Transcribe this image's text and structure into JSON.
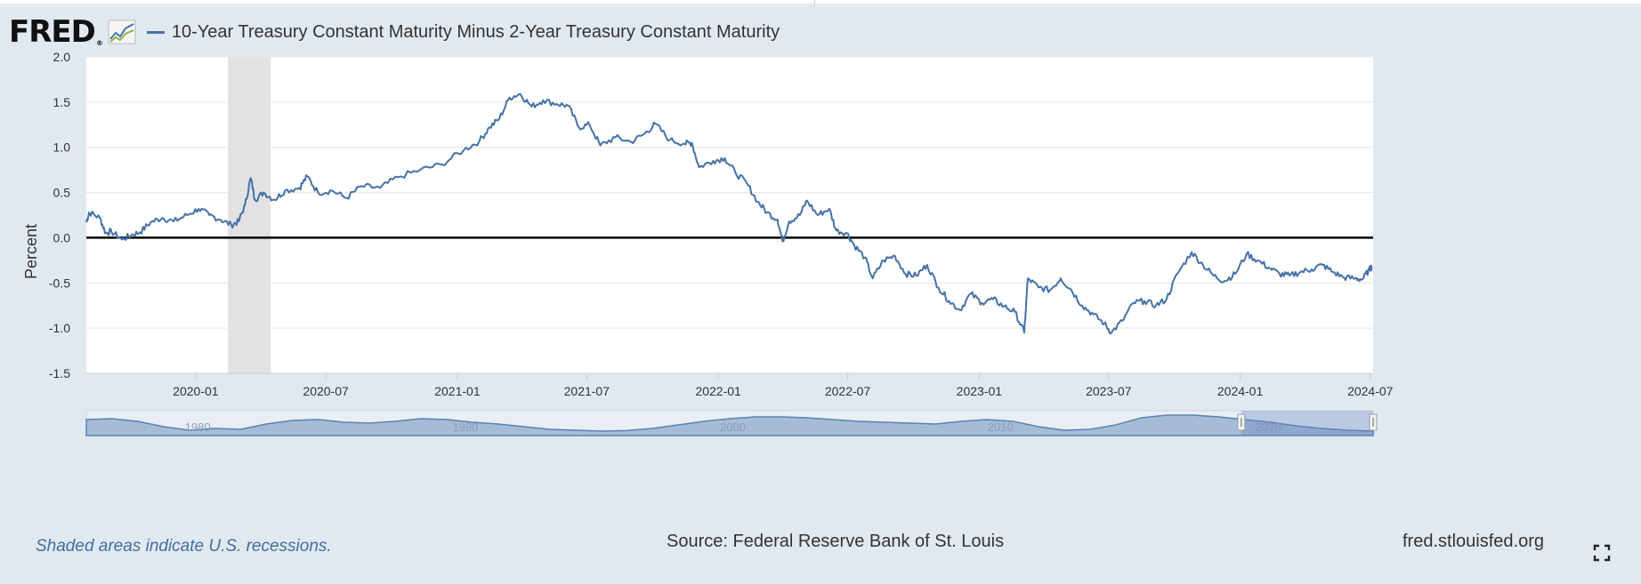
{
  "header": {
    "logo_text": "FRED",
    "logo_reg": "®",
    "logo_icon": "fred-trend-icon",
    "title": "10-Year Treasury Constant Maturity Minus 2-Year Treasury Constant Maturity"
  },
  "footer": {
    "recession_note": "Shaded areas indicate U.S. recessions.",
    "source": "Source: Federal Reserve Bank of St. Louis",
    "site": "fred.stlouisfed.org",
    "expand_icon": "fullscreen-icon"
  },
  "colors": {
    "series": "#4572a7",
    "recession": "#e2e2e2",
    "background": "#e1e9f0",
    "plot_bg": "#ffffff",
    "zero_line": "#000000"
  },
  "chart_data": {
    "type": "line",
    "title": "10-Year Treasury Constant Maturity Minus 2-Year Treasury Constant Maturity",
    "xlabel": "",
    "ylabel": "Percent",
    "ylim": [
      -1.5,
      2.0
    ],
    "xlim": [
      "2019-08-01",
      "2024-07-05"
    ],
    "yticks": [
      "2.0",
      "1.5",
      "1.0",
      "0.5",
      "0.0",
      "-0.5",
      "-1.0",
      "-1.5"
    ],
    "xticks": [
      "2020-01",
      "2020-07",
      "2021-01",
      "2021-07",
      "2022-01",
      "2022-07",
      "2023-01",
      "2023-07",
      "2024-01",
      "2024-07"
    ],
    "grid": "horizontal",
    "zero_line": true,
    "recession_shading": [
      [
        "2020-02-15",
        "2020-04-15"
      ]
    ],
    "series": [
      {
        "values": [
          [
            "2019-08-01",
            0.17
          ],
          [
            "2019-08-05",
            0.28
          ],
          [
            "2019-08-20",
            0.22
          ],
          [
            "2019-08-28",
            0.05
          ],
          [
            "2019-09-05",
            0.07
          ],
          [
            "2019-09-20",
            -0.02
          ],
          [
            "2019-10-03",
            0.03
          ],
          [
            "2019-10-15",
            0.06
          ],
          [
            "2019-10-30",
            0.17
          ],
          [
            "2019-11-15",
            0.22
          ],
          [
            "2019-12-01",
            0.18
          ],
          [
            "2019-12-20",
            0.25
          ],
          [
            "2020-01-05",
            0.32
          ],
          [
            "2020-01-20",
            0.25
          ],
          [
            "2020-02-05",
            0.2
          ],
          [
            "2020-02-20",
            0.14
          ],
          [
            "2020-03-01",
            0.18
          ],
          [
            "2020-03-10",
            0.36
          ],
          [
            "2020-03-18",
            0.66
          ],
          [
            "2020-03-24",
            0.42
          ],
          [
            "2020-04-05",
            0.5
          ],
          [
            "2020-04-20",
            0.42
          ],
          [
            "2020-05-05",
            0.52
          ],
          [
            "2020-05-25",
            0.55
          ],
          [
            "2020-06-05",
            0.68
          ],
          [
            "2020-06-20",
            0.5
          ],
          [
            "2020-07-10",
            0.52
          ],
          [
            "2020-07-30",
            0.44
          ],
          [
            "2020-08-20",
            0.57
          ],
          [
            "2020-09-15",
            0.55
          ],
          [
            "2020-10-10",
            0.67
          ],
          [
            "2020-11-10",
            0.75
          ],
          [
            "2020-12-10",
            0.81
          ],
          [
            "2021-01-10",
            0.97
          ],
          [
            "2021-02-01",
            1.07
          ],
          [
            "2021-02-15",
            1.22
          ],
          [
            "2021-03-01",
            1.32
          ],
          [
            "2021-03-15",
            1.55
          ],
          [
            "2021-03-30",
            1.59
          ],
          [
            "2021-04-15",
            1.45
          ],
          [
            "2021-05-01",
            1.52
          ],
          [
            "2021-05-20",
            1.48
          ],
          [
            "2021-06-05",
            1.46
          ],
          [
            "2021-06-20",
            1.22
          ],
          [
            "2021-07-05",
            1.25
          ],
          [
            "2021-07-20",
            1.02
          ],
          [
            "2021-08-10",
            1.11
          ],
          [
            "2021-09-01",
            1.06
          ],
          [
            "2021-09-20",
            1.15
          ],
          [
            "2021-10-05",
            1.26
          ],
          [
            "2021-10-25",
            1.08
          ],
          [
            "2021-11-15",
            1.04
          ],
          [
            "2021-11-25",
            1.05
          ],
          [
            "2021-12-05",
            0.78
          ],
          [
            "2021-12-25",
            0.85
          ],
          [
            "2022-01-10",
            0.88
          ],
          [
            "2022-01-25",
            0.72
          ],
          [
            "2022-02-10",
            0.6
          ],
          [
            "2022-02-25",
            0.4
          ],
          [
            "2022-03-10",
            0.28
          ],
          [
            "2022-03-25",
            0.2
          ],
          [
            "2022-04-01",
            -0.04
          ],
          [
            "2022-04-10",
            0.18
          ],
          [
            "2022-04-25",
            0.25
          ],
          [
            "2022-05-05",
            0.41
          ],
          [
            "2022-05-20",
            0.25
          ],
          [
            "2022-06-05",
            0.32
          ],
          [
            "2022-06-15",
            0.08
          ],
          [
            "2022-06-30",
            0.05
          ],
          [
            "2022-07-10",
            -0.08
          ],
          [
            "2022-07-25",
            -0.22
          ],
          [
            "2022-08-05",
            -0.45
          ],
          [
            "2022-08-20",
            -0.25
          ],
          [
            "2022-09-05",
            -0.2
          ],
          [
            "2022-09-20",
            -0.4
          ],
          [
            "2022-10-05",
            -0.42
          ],
          [
            "2022-10-20",
            -0.3
          ],
          [
            "2022-11-05",
            -0.55
          ],
          [
            "2022-11-20",
            -0.7
          ],
          [
            "2022-12-05",
            -0.8
          ],
          [
            "2022-12-20",
            -0.62
          ],
          [
            "2023-01-05",
            -0.72
          ],
          [
            "2023-01-20",
            -0.68
          ],
          [
            "2023-02-05",
            -0.76
          ],
          [
            "2023-02-20",
            -0.82
          ],
          [
            "2023-03-05",
            -1.05
          ],
          [
            "2023-03-10",
            -0.45
          ],
          [
            "2023-03-25",
            -0.55
          ],
          [
            "2023-04-10",
            -0.58
          ],
          [
            "2023-04-25",
            -0.45
          ],
          [
            "2023-05-10",
            -0.58
          ],
          [
            "2023-05-25",
            -0.75
          ],
          [
            "2023-06-10",
            -0.85
          ],
          [
            "2023-06-25",
            -0.95
          ],
          [
            "2023-07-05",
            -1.05
          ],
          [
            "2023-07-20",
            -0.92
          ],
          [
            "2023-08-05",
            -0.72
          ],
          [
            "2023-08-20",
            -0.7
          ],
          [
            "2023-09-05",
            -0.75
          ],
          [
            "2023-09-20",
            -0.68
          ],
          [
            "2023-10-05",
            -0.4
          ],
          [
            "2023-10-25",
            -0.16
          ],
          [
            "2023-11-10",
            -0.3
          ],
          [
            "2023-11-25",
            -0.42
          ],
          [
            "2023-12-10",
            -0.48
          ],
          [
            "2023-12-25",
            -0.4
          ],
          [
            "2024-01-10",
            -0.18
          ],
          [
            "2024-01-25",
            -0.25
          ],
          [
            "2024-02-10",
            -0.33
          ],
          [
            "2024-02-25",
            -0.4
          ],
          [
            "2024-03-10",
            -0.42
          ],
          [
            "2024-03-25",
            -0.38
          ],
          [
            "2024-04-10",
            -0.35
          ],
          [
            "2024-04-25",
            -0.3
          ],
          [
            "2024-05-10",
            -0.38
          ],
          [
            "2024-05-25",
            -0.44
          ],
          [
            "2024-06-10",
            -0.45
          ],
          [
            "2024-06-20",
            -0.46
          ],
          [
            "2024-06-30",
            -0.35
          ],
          [
            "2024-07-03",
            -0.32
          ]
        ]
      }
    ],
    "navigator": {
      "labels": [
        "1980",
        "1990",
        "2000",
        "2010",
        "2020"
      ],
      "range": [
        "1976-06-01",
        "2024-07-05"
      ],
      "selected": [
        "2019-08-01",
        "2024-07-05"
      ],
      "profile": [
        0.7,
        0.75,
        0.6,
        0.3,
        0.1,
        0.2,
        0.15,
        0.45,
        0.65,
        0.7,
        0.55,
        0.5,
        0.6,
        0.75,
        0.7,
        0.55,
        0.45,
        0.3,
        0.15,
        0.1,
        0.05,
        0.08,
        0.2,
        0.4,
        0.6,
        0.75,
        0.85,
        0.85,
        0.8,
        0.7,
        0.6,
        0.55,
        0.5,
        0.45,
        0.6,
        0.7,
        0.6,
        0.3,
        0.1,
        0.15,
        0.4,
        0.8,
        0.95,
        0.95,
        0.85,
        0.7,
        0.55,
        0.35,
        0.2,
        0.1,
        0.05
      ]
    }
  }
}
